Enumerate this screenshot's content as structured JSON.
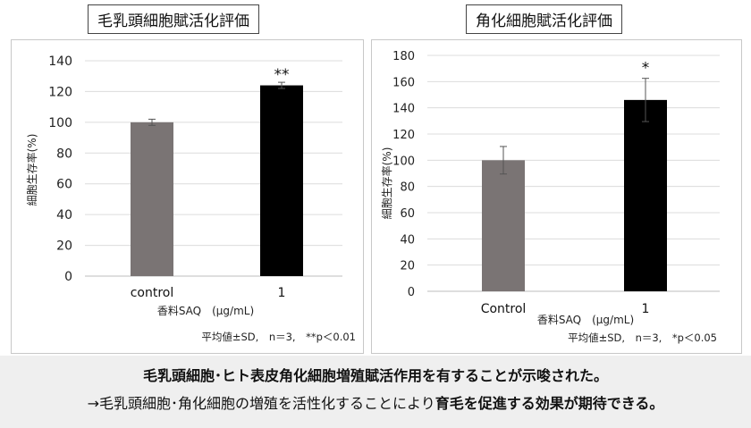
{
  "chart_data": [
    {
      "type": "bar",
      "title": "毛乳頭細胞賦活化評価",
      "categories": [
        "control",
        "1"
      ],
      "values": [
        100,
        124
      ],
      "errors": [
        2,
        2
      ],
      "significance": [
        "",
        "**"
      ],
      "bar_colors": [
        "#7a7474",
        "#000000"
      ],
      "ylabel": "細胞生存率(%)",
      "xlabel": "香料SAQ　(μg/mL)",
      "ylim": [
        0,
        140
      ],
      "yticks": [
        0,
        20,
        40,
        60,
        80,
        100,
        120,
        140
      ],
      "grid": true,
      "note": "平均値±SD,　n＝3,　**p＜0.01"
    },
    {
      "type": "bar",
      "title": "角化細胞賦活化評価",
      "categories": [
        "Control",
        "1"
      ],
      "values": [
        100,
        146
      ],
      "errors": [
        10.5,
        16.5
      ],
      "significance": [
        "",
        "*"
      ],
      "bar_colors": [
        "#7a7474",
        "#000000"
      ],
      "ylabel": "細胞生存率(%)",
      "xlabel": "香料SAQ　(μg/mL)",
      "ylim": [
        0,
        180
      ],
      "yticks": [
        0,
        20,
        40,
        60,
        80,
        100,
        120,
        140,
        160,
        180
      ],
      "grid": true,
      "note": "平均値±SD,　n＝3,　*p＜0.05"
    }
  ],
  "summary": {
    "line1": "毛乳頭細胞･ヒト表皮角化細胞増殖賦活作用を有することが示唆された。",
    "line2_prefix": "→毛乳頭細胞･角化細胞の増殖を活性化することにより",
    "line2_bold": "育毛を促進する効果が期待できる。"
  }
}
